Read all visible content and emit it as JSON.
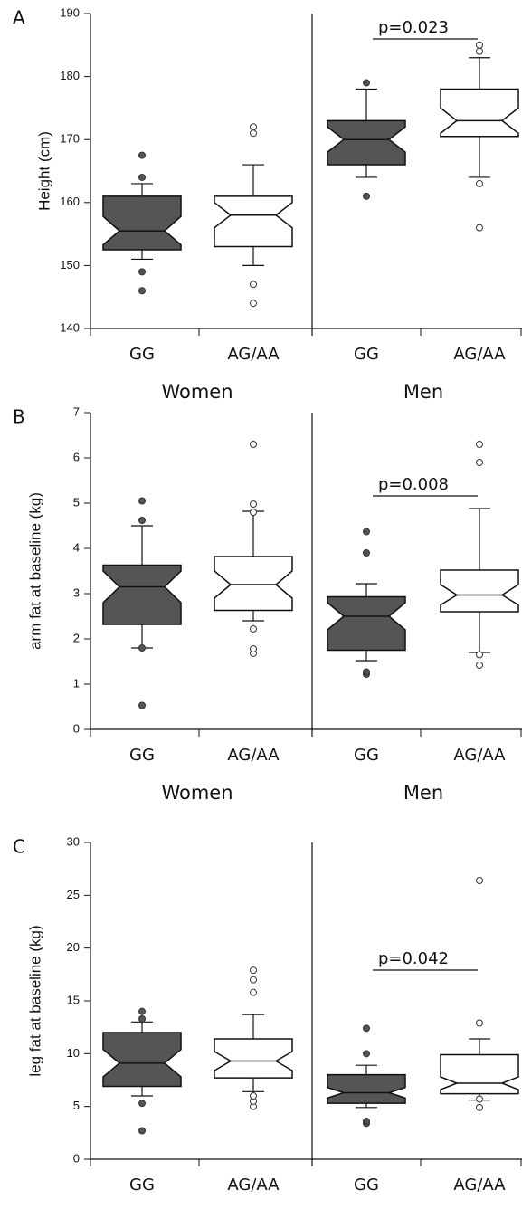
{
  "chart_data": [
    {
      "type": "box",
      "panel": "A",
      "ylabel": "Height (cm)",
      "ylim": [
        140,
        190
      ],
      "yticks": [
        140,
        150,
        160,
        170,
        180,
        190
      ],
      "categories": [
        "GG",
        "AG/AA",
        "GG",
        "AG/AA"
      ],
      "groups": [
        "Women",
        "Men"
      ],
      "annotation": "p=0.023",
      "colors": [
        "#555555",
        "#ffffff",
        "#555555",
        "#ffffff"
      ],
      "boxes": [
        {
          "whisker_low": 151,
          "q1": 152.5,
          "notch_low": 153.3,
          "median": 155.5,
          "notch_high": 157.8,
          "q3": 161,
          "whisker_high": 163,
          "outliers": [
            146,
            149,
            164,
            167.5
          ]
        },
        {
          "whisker_low": 150,
          "q1": 153,
          "notch_low": 156,
          "median": 158,
          "notch_high": 160,
          "q3": 161,
          "whisker_high": 166,
          "outliers": [
            144,
            147,
            171,
            172
          ]
        },
        {
          "whisker_low": 164,
          "q1": 166,
          "notch_low": 168,
          "median": 170,
          "notch_high": 172,
          "q3": 173,
          "whisker_high": 178,
          "outliers": [
            161,
            179
          ]
        },
        {
          "whisker_low": 164,
          "q1": 170.5,
          "notch_low": 171,
          "median": 173,
          "notch_high": 175,
          "q3": 178,
          "whisker_high": 183,
          "outliers": [
            156,
            163,
            184,
            185
          ]
        }
      ]
    },
    {
      "type": "box",
      "panel": "B",
      "ylabel": "arm fat at baseline (kg)",
      "ylim": [
        0,
        7
      ],
      "yticks": [
        0,
        1,
        2,
        3,
        4,
        5,
        6,
        7
      ],
      "categories": [
        "GG",
        "AG/AA",
        "GG",
        "AG/AA"
      ],
      "groups": [
        "Women",
        "Men"
      ],
      "annotation": "p=0.008",
      "colors": [
        "#555555",
        "#ffffff",
        "#555555",
        "#ffffff"
      ],
      "boxes": [
        {
          "whisker_low": 1.8,
          "q1": 2.32,
          "notch_low": 2.8,
          "median": 3.15,
          "notch_high": 3.5,
          "q3": 3.63,
          "whisker_high": 4.5,
          "outliers": [
            0.53,
            1.8,
            4.62,
            5.05
          ]
        },
        {
          "whisker_low": 2.4,
          "q1": 2.63,
          "notch_low": 2.9,
          "median": 3.2,
          "notch_high": 3.5,
          "q3": 3.82,
          "whisker_high": 4.82,
          "outliers": [
            1.68,
            1.78,
            2.22,
            4.8,
            4.98,
            6.3
          ]
        },
        {
          "whisker_low": 1.52,
          "q1": 1.75,
          "notch_low": 2.2,
          "median": 2.5,
          "notch_high": 2.8,
          "q3": 2.93,
          "whisker_high": 3.22,
          "outliers": [
            1.22,
            1.27,
            3.9,
            4.37
          ]
        },
        {
          "whisker_low": 1.7,
          "q1": 2.6,
          "notch_low": 2.75,
          "median": 2.97,
          "notch_high": 3.2,
          "q3": 3.52,
          "whisker_high": 4.88,
          "outliers": [
            1.42,
            1.65,
            5.9,
            6.3
          ]
        }
      ]
    },
    {
      "type": "box",
      "panel": "C",
      "ylabel": "leg fat at baseline (kg)",
      "ylim": [
        0,
        30
      ],
      "yticks": [
        0,
        5,
        10,
        15,
        20,
        25,
        30
      ],
      "categories": [
        "GG",
        "AG/AA",
        "GG",
        "AG/AA"
      ],
      "groups": [
        "Women",
        "Men"
      ],
      "annotation": "p=0.042",
      "colors": [
        "#555555",
        "#ffffff",
        "#555555",
        "#ffffff"
      ],
      "boxes": [
        {
          "whisker_low": 6,
          "q1": 6.9,
          "notch_low": 7.8,
          "median": 9.1,
          "notch_high": 10.4,
          "q3": 12,
          "whisker_high": 13,
          "outliers": [
            2.7,
            5.3,
            13.3,
            14
          ]
        },
        {
          "whisker_low": 6.4,
          "q1": 7.7,
          "notch_low": 8.4,
          "median": 9.3,
          "notch_high": 10.2,
          "q3": 11.4,
          "whisker_high": 13.7,
          "outliers": [
            5,
            5.5,
            6,
            15.8,
            17,
            17.9
          ]
        },
        {
          "whisker_low": 4.9,
          "q1": 5.3,
          "notch_low": 5.8,
          "median": 6.3,
          "notch_high": 6.8,
          "q3": 8,
          "whisker_high": 8.9,
          "outliers": [
            3.4,
            3.6,
            10,
            12.4
          ]
        },
        {
          "whisker_low": 5.6,
          "q1": 6.2,
          "notch_low": 6.6,
          "median": 7.2,
          "notch_high": 7.8,
          "q3": 9.9,
          "whisker_high": 11.4,
          "outliers": [
            4.9,
            5.7,
            12.9,
            26.4
          ]
        }
      ]
    }
  ]
}
